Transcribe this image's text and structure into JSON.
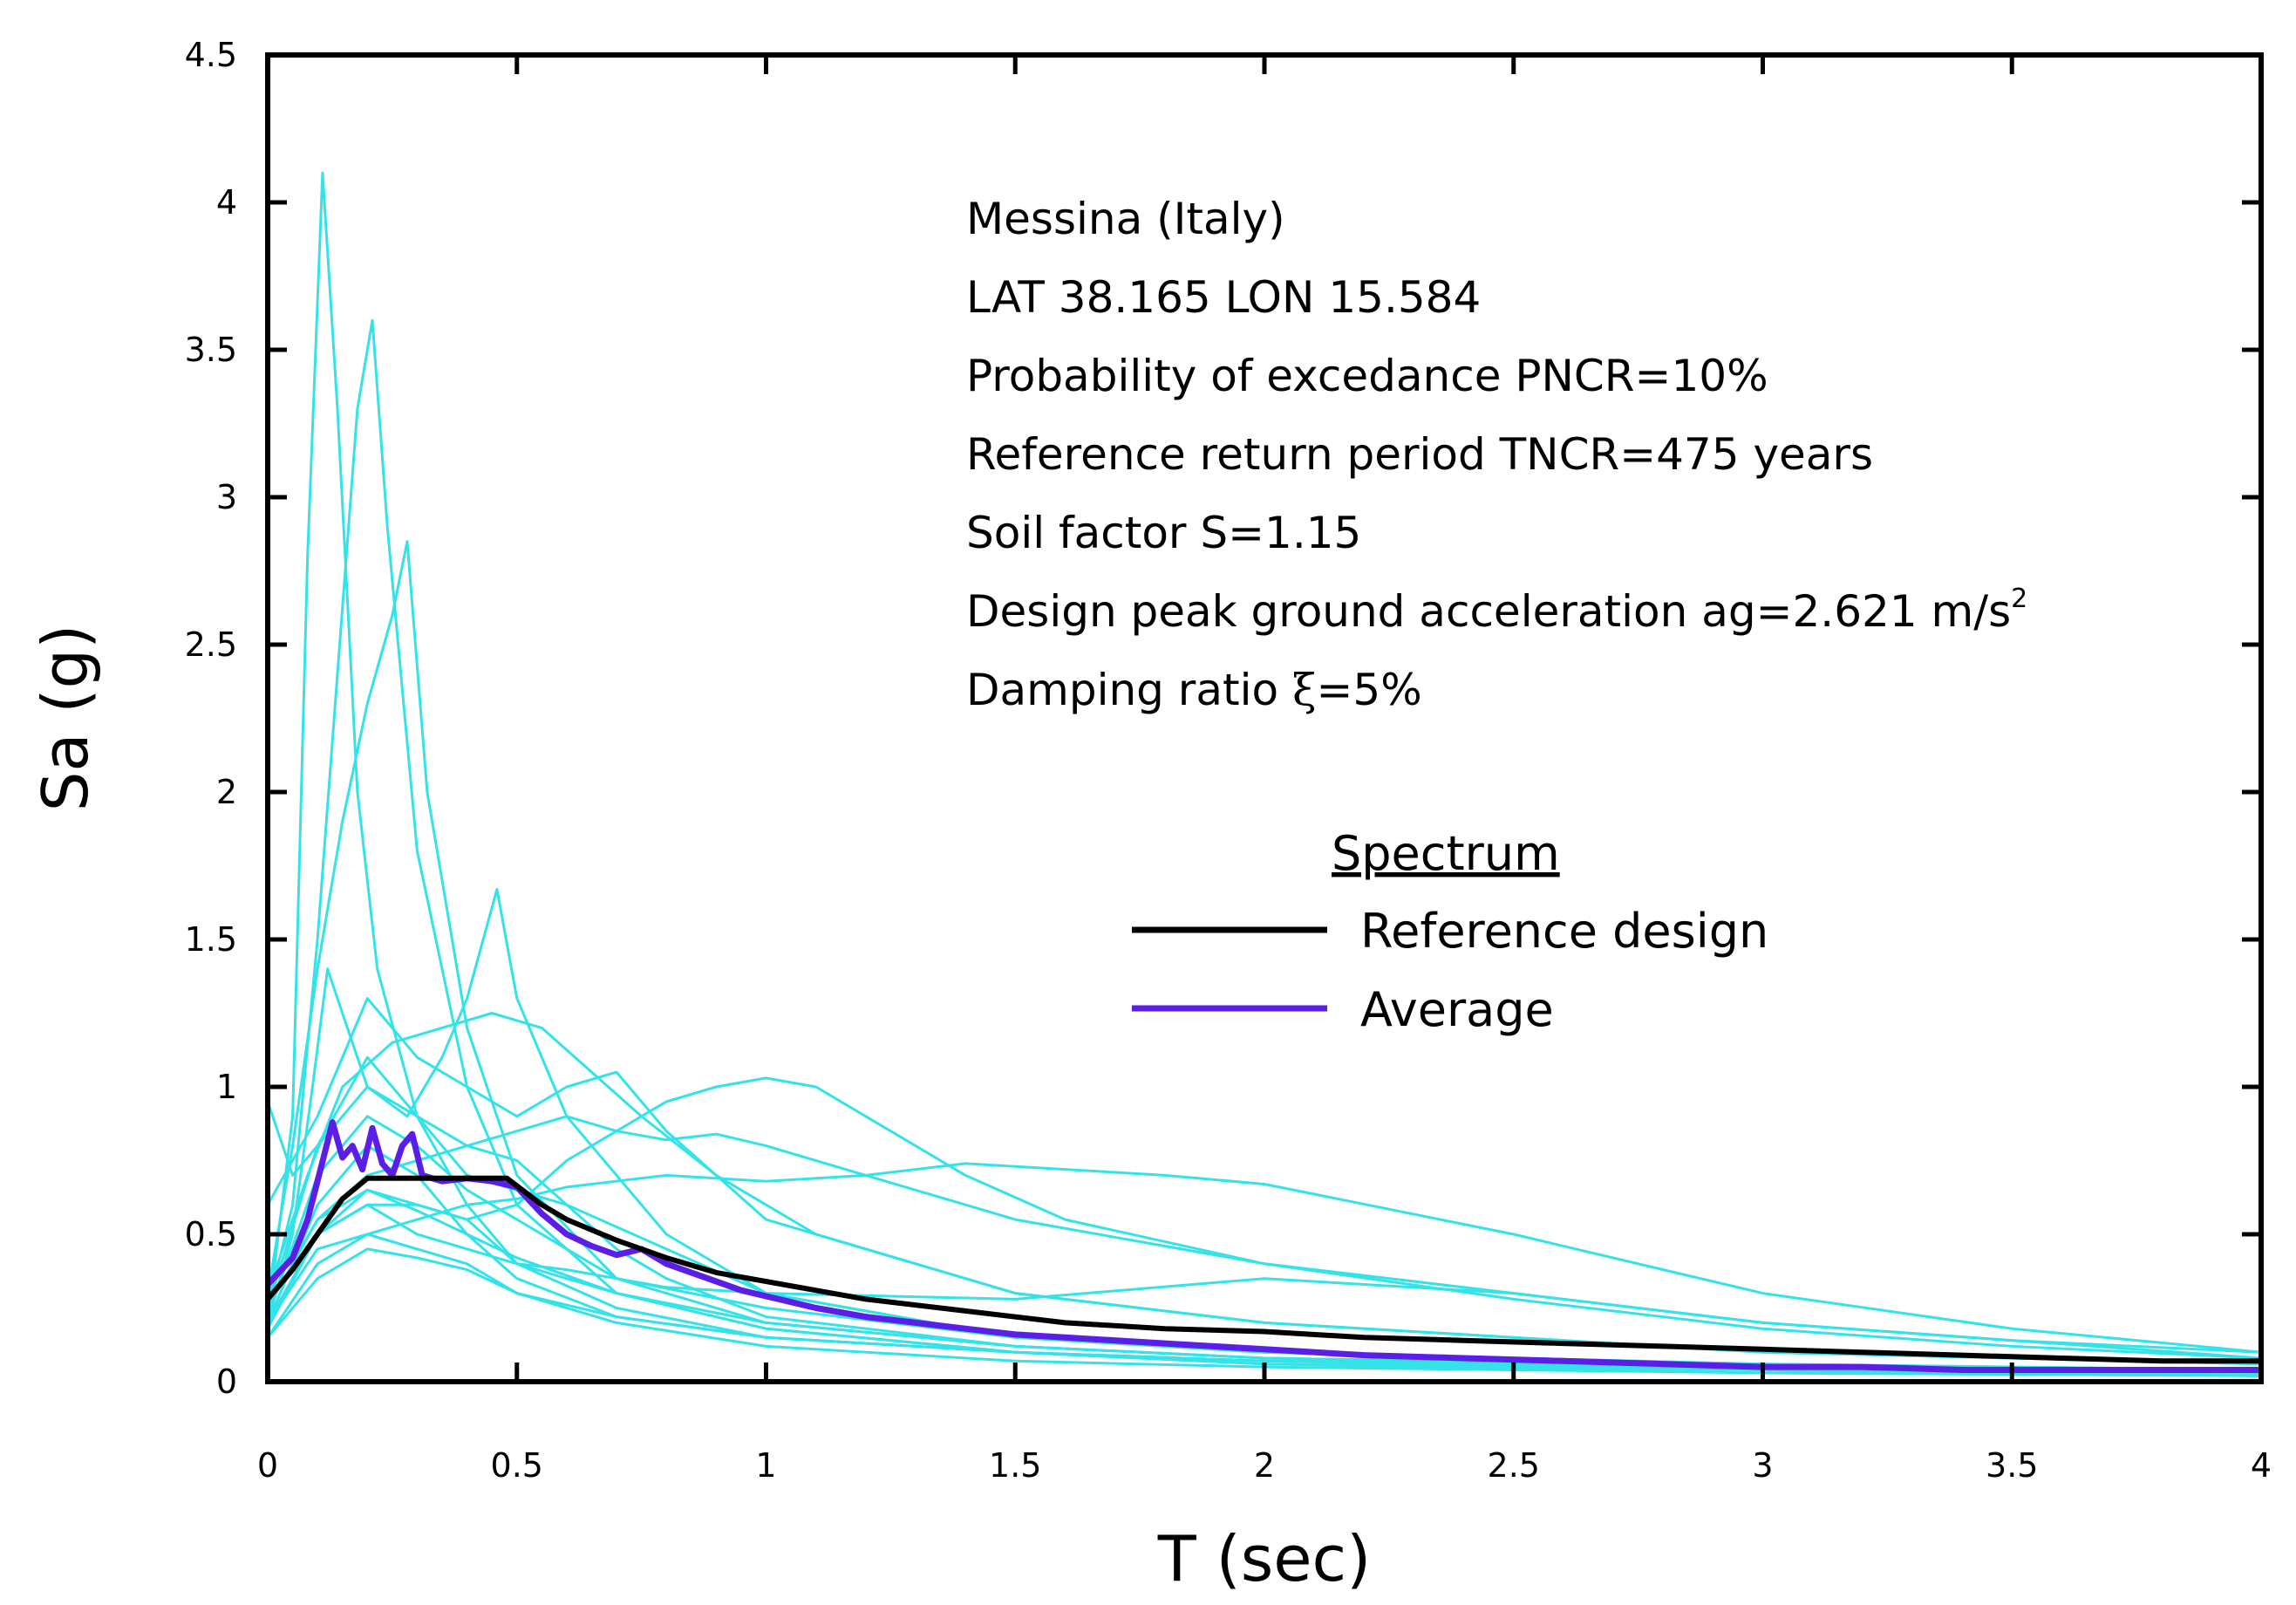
{
  "chart_data": {
    "type": "line",
    "title": "",
    "xlabel": "T (sec)",
    "ylabel": "Sa (g)",
    "xlim": [
      0,
      4
    ],
    "ylim": [
      0,
      4.5
    ],
    "xticks": [
      "0",
      "0.5",
      "1",
      "1.5",
      "2",
      "2.5",
      "3",
      "3.5",
      "4"
    ],
    "yticks": [
      "0",
      "0.5",
      "1",
      "1.5",
      "2",
      "2.5",
      "3",
      "3.5",
      "4",
      "4.5"
    ],
    "annotations": {
      "site": "Messina (Italy)",
      "coordinates": "LAT 38.165 LON 15.584",
      "probability": "Probability of excedance PNCR=10%",
      "return_period": "Reference return period TNCR=475 years",
      "soil_factor": "Soil factor S=1.15",
      "pga_prefix": "Design peak ground acceleration ag=2.621 m/s",
      "pga_exp": "2",
      "damping_prefix": "Damping ratio ",
      "damping_symbol": "ξ",
      "damping_suffix": "=5%"
    },
    "legend": {
      "title": "Spectrum",
      "position": "center-right",
      "entries": [
        {
          "label": "Reference design",
          "color": "#000000"
        },
        {
          "label": "Average",
          "color": "#5a1ee6"
        }
      ]
    },
    "colors": {
      "records": "#33e3e8",
      "reference": "#000000",
      "average": "#5a1ee6"
    },
    "series": [
      {
        "name": "Reference design",
        "role": "reference",
        "x": [
          0,
          0.05,
          0.1,
          0.15,
          0.2,
          0.3,
          0.4,
          0.48,
          0.55,
          0.6,
          0.7,
          0.8,
          0.9,
          1.0,
          1.2,
          1.4,
          1.6,
          1.8,
          2.0,
          2.2,
          2.4,
          2.6,
          2.8,
          3.0,
          3.2,
          3.4,
          3.6,
          3.8,
          4.0
        ],
        "y": [
          0.28,
          0.38,
          0.5,
          0.62,
          0.69,
          0.69,
          0.69,
          0.69,
          0.6,
          0.55,
          0.48,
          0.42,
          0.37,
          0.34,
          0.28,
          0.24,
          0.2,
          0.18,
          0.17,
          0.15,
          0.14,
          0.13,
          0.12,
          0.11,
          0.1,
          0.09,
          0.08,
          0.07,
          0.07
        ]
      },
      {
        "name": "Average",
        "role": "average",
        "x": [
          0,
          0.05,
          0.08,
          0.1,
          0.13,
          0.15,
          0.17,
          0.19,
          0.21,
          0.23,
          0.25,
          0.27,
          0.29,
          0.31,
          0.35,
          0.4,
          0.45,
          0.5,
          0.55,
          0.6,
          0.65,
          0.7,
          0.75,
          0.8,
          0.85,
          0.9,
          0.95,
          1.0,
          1.05,
          1.1,
          1.2,
          1.3,
          1.4,
          1.5,
          1.6,
          1.8,
          2.0,
          2.2,
          2.4,
          2.6,
          2.8,
          3.0,
          3.2,
          3.4,
          3.6,
          3.8,
          4.0
        ],
        "y": [
          0.33,
          0.42,
          0.55,
          0.68,
          0.88,
          0.76,
          0.8,
          0.72,
          0.86,
          0.74,
          0.7,
          0.8,
          0.84,
          0.7,
          0.68,
          0.69,
          0.68,
          0.66,
          0.57,
          0.5,
          0.46,
          0.43,
          0.45,
          0.4,
          0.37,
          0.34,
          0.31,
          0.29,
          0.27,
          0.25,
          0.22,
          0.2,
          0.18,
          0.16,
          0.15,
          0.13,
          0.11,
          0.09,
          0.08,
          0.07,
          0.06,
          0.05,
          0.05,
          0.04,
          0.04,
          0.04,
          0.04
        ]
      },
      {
        "name": "Record 1",
        "role": "record",
        "x": [
          0,
          0.05,
          0.08,
          0.11,
          0.14,
          0.18,
          0.22,
          0.3,
          0.4,
          0.5,
          0.7,
          1.0,
          1.5,
          2.0,
          3.0,
          4.0
        ],
        "y": [
          0.2,
          0.9,
          2.8,
          4.1,
          3.3,
          2.0,
          1.4,
          0.9,
          0.6,
          0.4,
          0.25,
          0.15,
          0.1,
          0.07,
          0.05,
          0.03
        ]
      },
      {
        "name": "Record 2",
        "role": "record",
        "x": [
          0,
          0.05,
          0.1,
          0.14,
          0.18,
          0.21,
          0.24,
          0.3,
          0.4,
          0.5,
          0.7,
          1.0,
          1.5,
          2.0,
          3.0,
          4.0
        ],
        "y": [
          0.25,
          0.6,
          1.5,
          2.4,
          3.3,
          3.6,
          2.9,
          1.8,
          1.0,
          0.6,
          0.3,
          0.18,
          0.1,
          0.07,
          0.04,
          0.02
        ]
      },
      {
        "name": "Record 3",
        "role": "record",
        "x": [
          0,
          0.05,
          0.1,
          0.15,
          0.2,
          0.25,
          0.28,
          0.32,
          0.4,
          0.5,
          0.7,
          1.0,
          1.5,
          2.0,
          3.0,
          4.0
        ],
        "y": [
          0.3,
          0.8,
          1.4,
          1.9,
          2.3,
          2.6,
          2.85,
          2.0,
          1.2,
          0.7,
          0.35,
          0.2,
          0.12,
          0.08,
          0.05,
          0.03
        ]
      },
      {
        "name": "Record 4",
        "role": "record",
        "x": [
          0,
          0.05,
          0.09,
          0.12,
          0.16,
          0.2,
          0.28,
          0.35,
          0.4,
          0.46,
          0.5,
          0.6,
          0.8,
          1.0,
          1.5,
          2.0,
          3.0,
          4.0
        ],
        "y": [
          0.2,
          0.5,
          1.0,
          1.4,
          1.2,
          1.0,
          0.9,
          1.1,
          1.3,
          1.67,
          1.3,
          0.9,
          0.5,
          0.3,
          0.15,
          0.1,
          0.05,
          0.03
        ]
      },
      {
        "name": "Record 5",
        "role": "record",
        "x": [
          0,
          0.05,
          0.1,
          0.15,
          0.2,
          0.3,
          0.4,
          0.5,
          0.6,
          0.7,
          0.8,
          0.9,
          1.0,
          1.1,
          1.2,
          1.4,
          1.6,
          2.0,
          2.5,
          3.0,
          3.5,
          4.0
        ],
        "y": [
          0.2,
          0.35,
          0.5,
          0.55,
          0.6,
          0.6,
          0.55,
          0.6,
          0.75,
          0.85,
          0.95,
          1.0,
          1.03,
          1.0,
          0.9,
          0.7,
          0.55,
          0.4,
          0.3,
          0.2,
          0.14,
          0.1
        ]
      },
      {
        "name": "Record 6",
        "role": "record",
        "x": [
          0,
          0.1,
          0.2,
          0.3,
          0.4,
          0.5,
          0.6,
          0.8,
          1.0,
          1.2,
          1.4,
          1.6,
          1.8,
          2.0,
          2.5,
          3.0,
          3.5,
          4.0
        ],
        "y": [
          0.2,
          0.45,
          0.5,
          0.55,
          0.6,
          0.62,
          0.66,
          0.7,
          0.68,
          0.7,
          0.74,
          0.72,
          0.7,
          0.67,
          0.5,
          0.3,
          0.18,
          0.1
        ]
      },
      {
        "name": "Record 7",
        "role": "record",
        "x": [
          0,
          0.1,
          0.2,
          0.3,
          0.4,
          0.5,
          0.6,
          0.7,
          0.8,
          0.9,
          1.0,
          1.2,
          1.5,
          2.0,
          2.5,
          3.0,
          3.5,
          4.0
        ],
        "y": [
          0.25,
          0.55,
          0.7,
          0.75,
          0.8,
          0.85,
          0.9,
          0.85,
          0.82,
          0.84,
          0.8,
          0.7,
          0.55,
          0.4,
          0.28,
          0.18,
          0.12,
          0.08
        ]
      },
      {
        "name": "Record 8",
        "role": "record",
        "x": [
          0,
          0.08,
          0.15,
          0.25,
          0.35,
          0.45,
          0.55,
          0.65,
          0.75,
          0.9,
          1.1,
          1.5,
          2.0,
          3.0,
          4.0
        ],
        "y": [
          0.3,
          0.7,
          1.0,
          1.15,
          1.2,
          1.25,
          1.2,
          1.05,
          0.9,
          0.7,
          0.5,
          0.3,
          0.2,
          0.1,
          0.06
        ]
      },
      {
        "name": "Record 9",
        "role": "record",
        "x": [
          0,
          0.05,
          0.1,
          0.2,
          0.3,
          0.4,
          0.5,
          0.6,
          0.7,
          0.8,
          1.0,
          1.5,
          2.0,
          3.0,
          4.0
        ],
        "y": [
          0.95,
          0.7,
          0.8,
          1.0,
          0.9,
          0.8,
          0.75,
          0.6,
          0.45,
          0.35,
          0.22,
          0.12,
          0.08,
          0.05,
          0.03
        ]
      },
      {
        "name": "Record 10",
        "role": "record",
        "x": [
          0,
          0.1,
          0.2,
          0.3,
          0.4,
          0.5,
          0.6,
          0.7,
          0.8,
          1.0,
          1.5,
          2.0,
          3.0,
          4.0
        ],
        "y": [
          0.6,
          0.9,
          1.3,
          1.1,
          1.0,
          0.9,
          1.0,
          1.05,
          0.85,
          0.55,
          0.3,
          0.2,
          0.1,
          0.06
        ]
      },
      {
        "name": "Record 11",
        "role": "record",
        "x": [
          0,
          0.1,
          0.2,
          0.3,
          0.4,
          0.5,
          0.6,
          0.8,
          1.0,
          1.5,
          2.0,
          2.5,
          3.0,
          4.0
        ],
        "y": [
          0.2,
          0.5,
          0.6,
          0.5,
          0.45,
          0.4,
          0.38,
          0.32,
          0.3,
          0.28,
          0.35,
          0.3,
          0.2,
          0.08
        ]
      },
      {
        "name": "Record 12",
        "role": "record",
        "x": [
          0,
          0.1,
          0.2,
          0.3,
          0.4,
          0.5,
          0.7,
          1.0,
          1.5,
          2.0,
          3.0,
          4.0
        ],
        "y": [
          0.15,
          0.4,
          0.5,
          0.45,
          0.4,
          0.3,
          0.2,
          0.12,
          0.07,
          0.05,
          0.03,
          0.02
        ]
      },
      {
        "name": "Record 13",
        "role": "record",
        "x": [
          0,
          0.1,
          0.2,
          0.3,
          0.4,
          0.5,
          0.7,
          1.0,
          1.5,
          2.0,
          3.0,
          4.0
        ],
        "y": [
          0.2,
          0.6,
          0.8,
          0.7,
          0.5,
          0.35,
          0.22,
          0.15,
          0.1,
          0.07,
          0.04,
          0.03
        ]
      },
      {
        "name": "Record 14",
        "role": "record",
        "x": [
          0,
          0.1,
          0.2,
          0.3,
          0.4,
          0.5,
          0.7,
          1.0,
          1.5,
          2.0,
          3.0,
          4.0
        ],
        "y": [
          0.18,
          0.5,
          0.65,
          0.6,
          0.55,
          0.4,
          0.3,
          0.2,
          0.12,
          0.08,
          0.05,
          0.03
        ]
      },
      {
        "name": "Record 15",
        "role": "record",
        "x": [
          0,
          0.1,
          0.2,
          0.3,
          0.4,
          0.5,
          0.7,
          1.0,
          1.5,
          2.0,
          3.0,
          4.0
        ],
        "y": [
          0.22,
          0.7,
          0.9,
          0.8,
          0.65,
          0.55,
          0.35,
          0.25,
          0.15,
          0.1,
          0.06,
          0.04
        ]
      },
      {
        "name": "Record 16",
        "role": "record",
        "x": [
          0,
          0.1,
          0.2,
          0.3,
          0.4,
          0.5,
          0.7,
          1.0,
          1.5,
          2.0,
          3.0,
          4.0
        ],
        "y": [
          0.15,
          0.35,
          0.45,
          0.42,
          0.38,
          0.3,
          0.22,
          0.15,
          0.1,
          0.06,
          0.03,
          0.02
        ]
      },
      {
        "name": "Record 17",
        "role": "record",
        "x": [
          0,
          0.1,
          0.2,
          0.3,
          0.4,
          0.5,
          0.6,
          0.8,
          1.0,
          1.5,
          2.0,
          3.0,
          4.0
        ],
        "y": [
          0.25,
          0.8,
          1.1,
          0.9,
          0.7,
          0.65,
          0.6,
          0.45,
          0.3,
          0.15,
          0.1,
          0.06,
          0.04
        ]
      },
      {
        "name": "Record 18",
        "role": "record",
        "x": [
          0,
          0.05,
          0.1,
          0.2,
          0.3,
          0.4,
          0.5,
          0.7,
          1.0,
          1.5,
          2.0,
          3.0,
          4.0
        ],
        "y": [
          0.2,
          0.4,
          0.55,
          0.65,
          0.58,
          0.5,
          0.42,
          0.3,
          0.18,
          0.1,
          0.06,
          0.04,
          0.03
        ]
      }
    ]
  }
}
